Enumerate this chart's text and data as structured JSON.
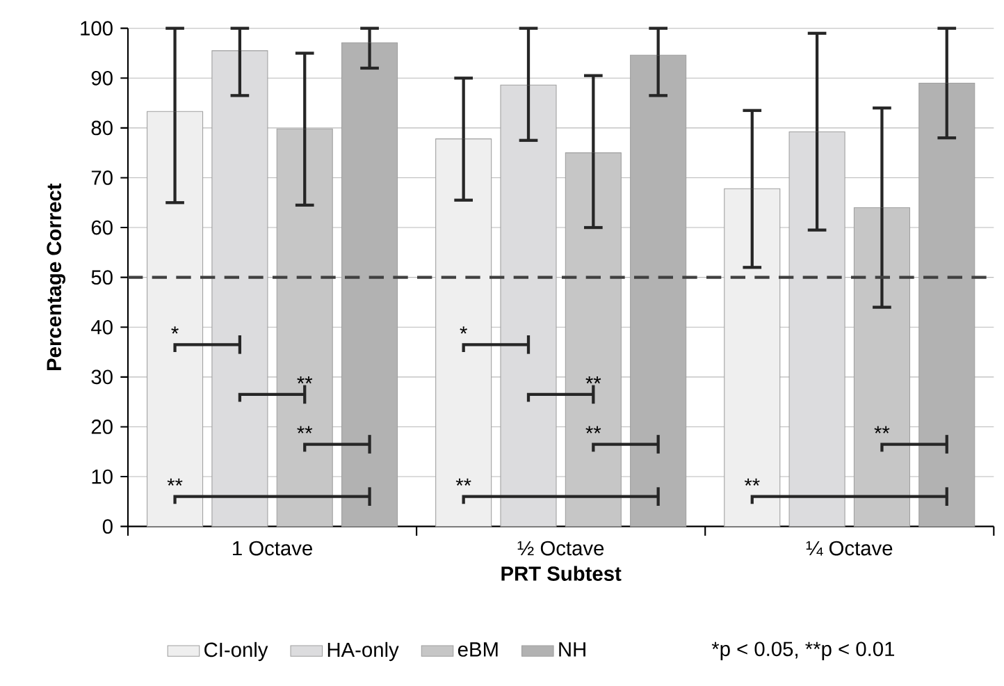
{
  "chart_data": {
    "type": "bar",
    "xlabel": "PRT Subtest",
    "ylabel": "Percentage Correct",
    "categories": [
      "1 Octave",
      "½ Octave",
      "¼ Octave"
    ],
    "series": [
      {
        "name": "CI-only",
        "color": "#efefef",
        "values": [
          83.3,
          77.8,
          67.8
        ],
        "errors": [
          [
            65,
            100
          ],
          [
            65.5,
            90
          ],
          [
            52,
            83.5
          ]
        ]
      },
      {
        "name": "HA-only",
        "color": "#dcdcde",
        "values": [
          95.5,
          88.6,
          79.2
        ],
        "errors": [
          [
            86.5,
            100
          ],
          [
            77.5,
            100
          ],
          [
            59.5,
            99
          ]
        ]
      },
      {
        "name": "eBM",
        "color": "#c6c6c6",
        "values": [
          79.8,
          75,
          64
        ],
        "errors": [
          [
            64.5,
            95
          ],
          [
            60,
            90.5
          ],
          [
            44,
            84
          ]
        ]
      },
      {
        "name": "NH",
        "color": "#b2b2b2",
        "values": [
          97.1,
          94.6,
          89
        ],
        "errors": [
          [
            92,
            100
          ],
          [
            86.5,
            100
          ],
          [
            78,
            100
          ]
        ]
      }
    ],
    "ylim": [
      0,
      100
    ],
    "yticks": [
      0,
      10,
      20,
      30,
      40,
      50,
      60,
      70,
      80,
      90,
      100
    ],
    "grid": "y",
    "legend": "bottom",
    "ref_lines": [
      {
        "axis": "y",
        "value": 50,
        "color": "#404040",
        "line_style": "dashed"
      }
    ],
    "annotations": [
      "*",
      {
        "text": "**",
        "x": "1 Octave",
        "y": 26.5
      },
      {
        "text": "**",
        "x": "1 Octave",
        "y": 16.5
      },
      "**",
      "*",
      {
        "text": "**",
        "x": "½ Octave",
        "y": 26.5
      },
      {
        "text": "**",
        "x": "½ Octave",
        "y": 16.5
      },
      "**",
      {
        "text": "**",
        "x": "¼ Octave",
        "y": 16.5
      },
      "**",
      "*p < 0.05, **p < 0.01"
    ]
  }
}
